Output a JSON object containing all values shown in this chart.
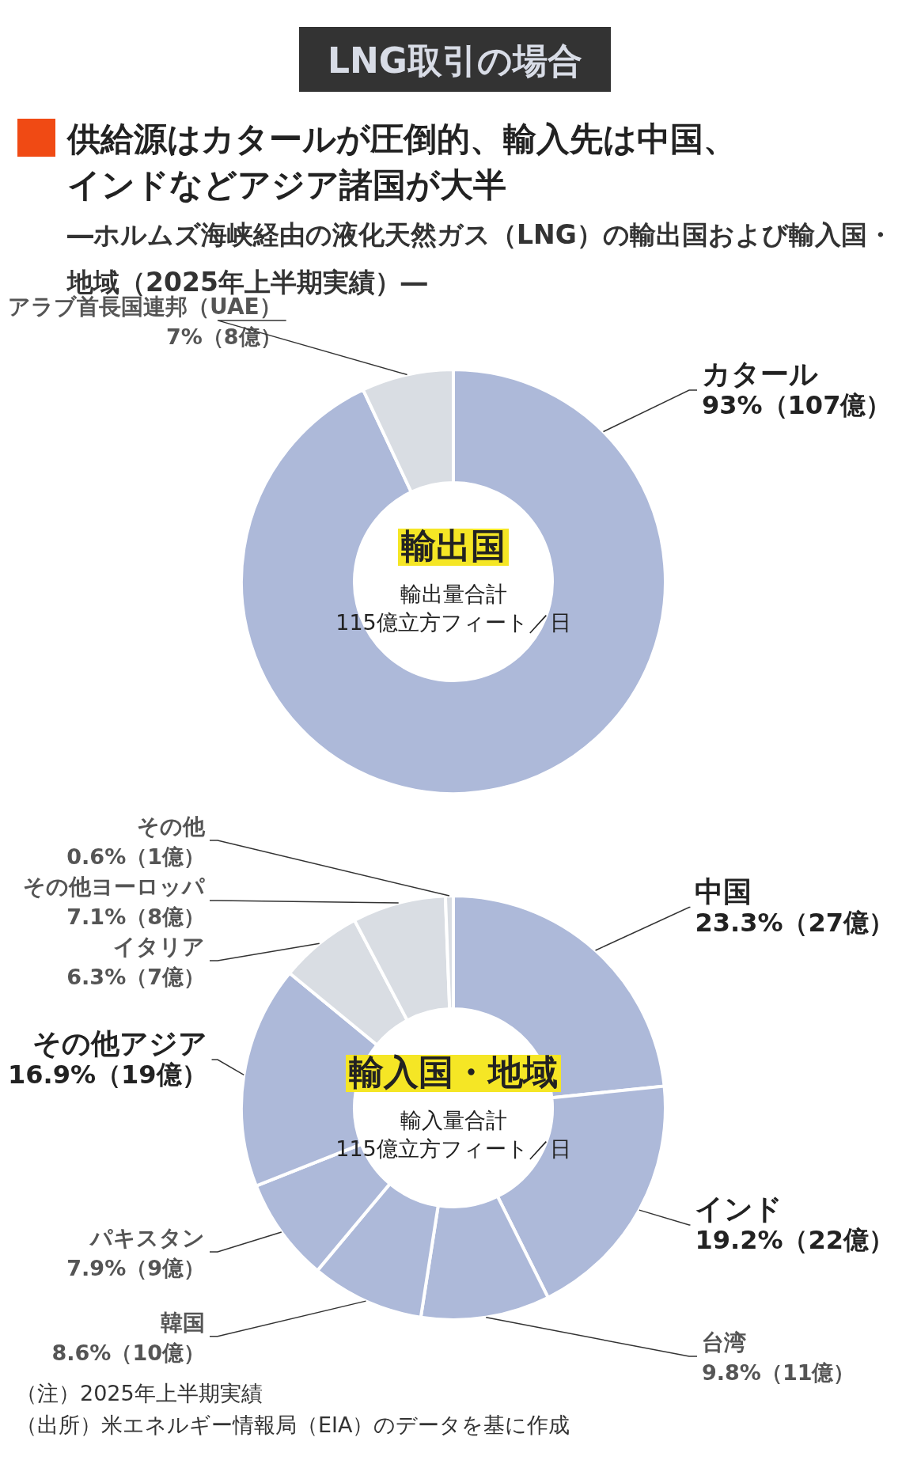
{
  "chart_data": [
    {
      "type": "donut",
      "title": "供給源はカタールが圧倒的、輸入先は中国、インドなどアジア諸国が大半",
      "subtitle": "―ホルムズ海峡経由の液化天然ガス（LNG）の輸出国および輸入国・地域（2025年上半期実績）―",
      "annotations": [
        "LNG取引の場合",
        "輸出国",
        "輸出量合計",
        "115億立方フィート／日"
      ],
      "categories": [
        "カタール",
        "アラブ首長国連邦（UAE）"
      ],
      "values": [
        93,
        7
      ],
      "value_labels": [
        "93%（107億）",
        "7%（8億）"
      ],
      "colors": [
        "#adb9d9",
        "#d9dde3"
      ]
    },
    {
      "type": "donut",
      "annotations": [
        "輸入国・地域",
        "輸入量合計",
        "115億立方フィート／日",
        "（注）2025年上半期実績",
        "（出所）米エネルギー情報局（EIA）のデータを基に作成"
      ],
      "categories": [
        "中国",
        "インド",
        "台湾",
        "韓国",
        "パキスタン",
        "その他アジア",
        "イタリア",
        "その他ヨーロッパ",
        "その他"
      ],
      "values": [
        23.3,
        19.2,
        9.8,
        8.6,
        7.9,
        16.9,
        6.3,
        7.1,
        0.6
      ],
      "value_labels": [
        "23.3%（27億）",
        "19.2%（22億）",
        "9.8%（11億）",
        "8.6%（10億）",
        "7.9%（9億）",
        "16.9%（19億）",
        "6.3%（7億）",
        "7.1%（8億）",
        "0.6%（1億）"
      ],
      "colors": [
        "#adb9d9",
        "#adb9d9",
        "#adb9d9",
        "#adb9d9",
        "#adb9d9",
        "#adb9d9",
        "#d9dde3",
        "#d9dde3",
        "#d9dde3"
      ]
    }
  ]
}
